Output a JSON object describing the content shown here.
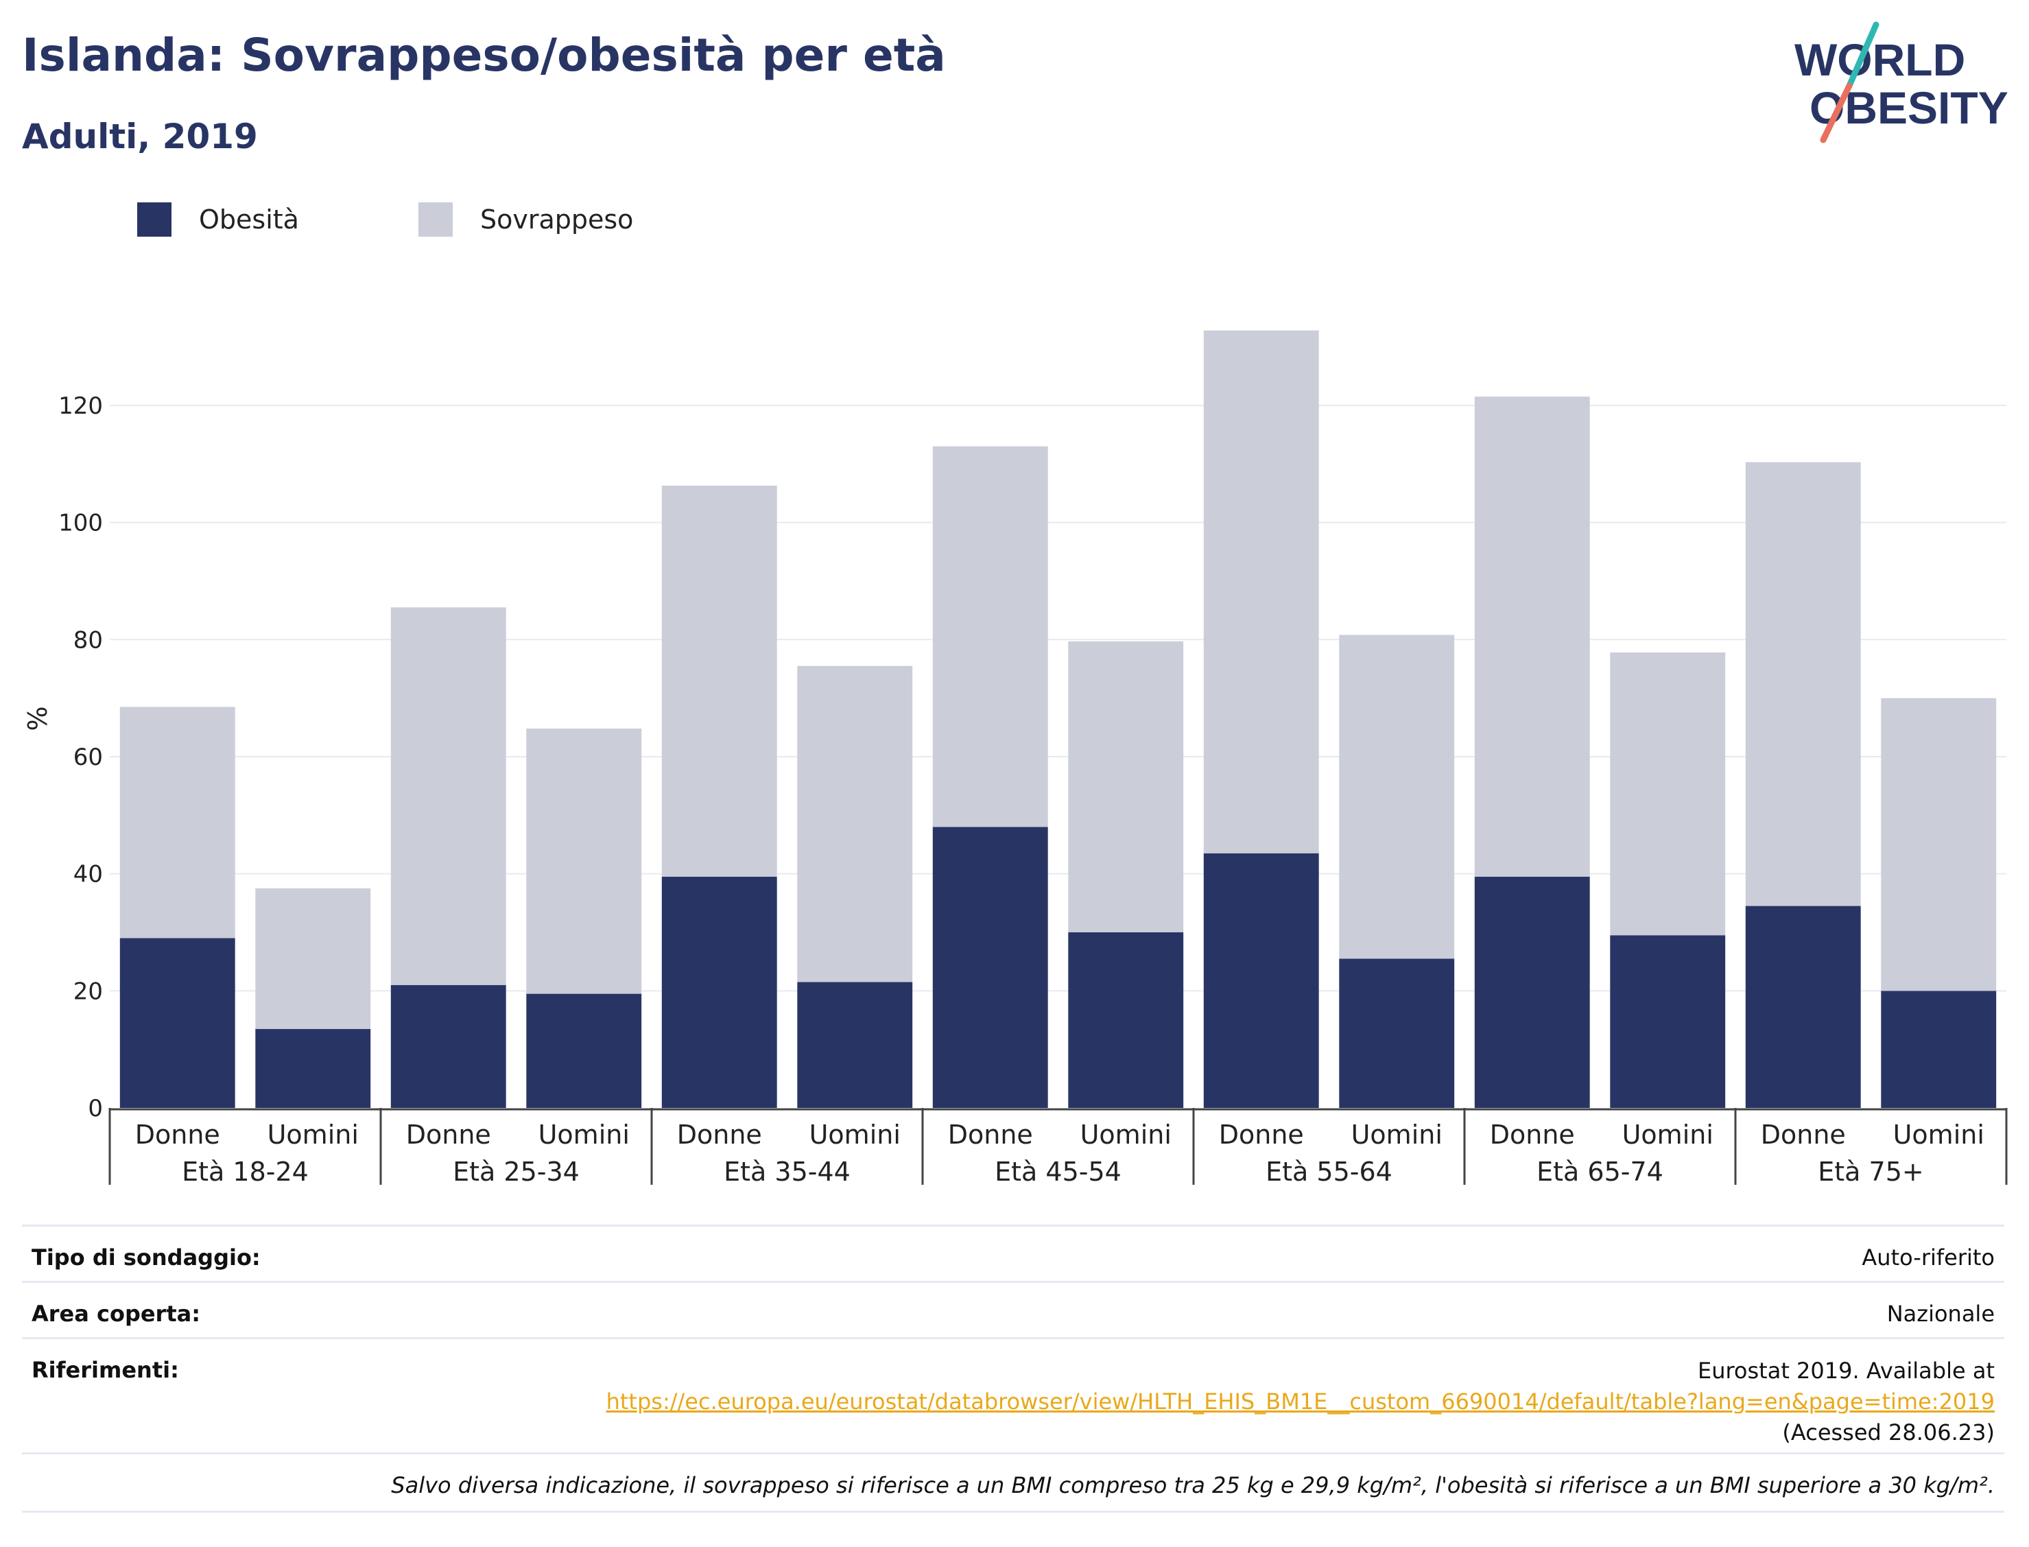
{
  "header": {
    "title": "Islanda: Sovrappeso/obesità per età",
    "subtitle": "Adulti, 2019",
    "logo_line1": "WORLD",
    "logo_line2": "OBESITY"
  },
  "colors": {
    "obesity": "#283564",
    "overweight": "#cbcdd9",
    "grid": "#e8eaf0",
    "axis": "#444444",
    "logo_navy": "#283564",
    "logo_teal": "#2fb8b3",
    "logo_coral": "#e8705f",
    "link": "#e9a81a"
  },
  "legend": {
    "items": [
      {
        "label": "Obesità",
        "color": "#283564"
      },
      {
        "label": "Sovrappeso",
        "color": "#cbcdd9"
      }
    ]
  },
  "chart_data": {
    "type": "bar",
    "stacked": true,
    "ylabel": "%",
    "ylim": [
      0,
      133
    ],
    "yticks": [
      0,
      20,
      40,
      60,
      80,
      100,
      120
    ],
    "grid": true,
    "groups": [
      "Età 18-24",
      "Età 25-34",
      "Età 35-44",
      "Età 45-54",
      "Età 55-64",
      "Età 65-74",
      "Età 75+"
    ],
    "sexes": [
      "Donne",
      "Uomini"
    ],
    "series": [
      {
        "name": "Obesità",
        "values": [
          29,
          13.5,
          21,
          19.5,
          39.5,
          21.5,
          48,
          30,
          43.5,
          25.5,
          39.5,
          29.5,
          34.5,
          20
        ]
      },
      {
        "name": "Sovrappeso",
        "values": [
          39.5,
          24,
          64.5,
          45.3,
          66.8,
          54,
          65,
          49.7,
          89.3,
          55.3,
          82,
          48.3,
          75.8,
          50
        ]
      }
    ]
  },
  "meta": {
    "survey_label": "Tipo di sondaggio:",
    "survey_value": "Auto-riferito",
    "area_label": "Area coperta:",
    "area_value": "Nazionale",
    "ref_label": "Riferimenti:",
    "ref_line1": "Eurostat 2019. Available at",
    "ref_link": "https://ec.europa.eu/eurostat/databrowser/view/HLTH_EHIS_BM1E__custom_6690014/default/table?lang=en&page=time:2019",
    "ref_line3": "(Acessed 28.06.23)",
    "note": "Salvo diversa indicazione, il sovrappeso si riferisce a un BMI compreso tra 25 kg e 29,9 kg/m², l'obesità si riferisce a un BMI superiore a 30 kg/m²."
  }
}
